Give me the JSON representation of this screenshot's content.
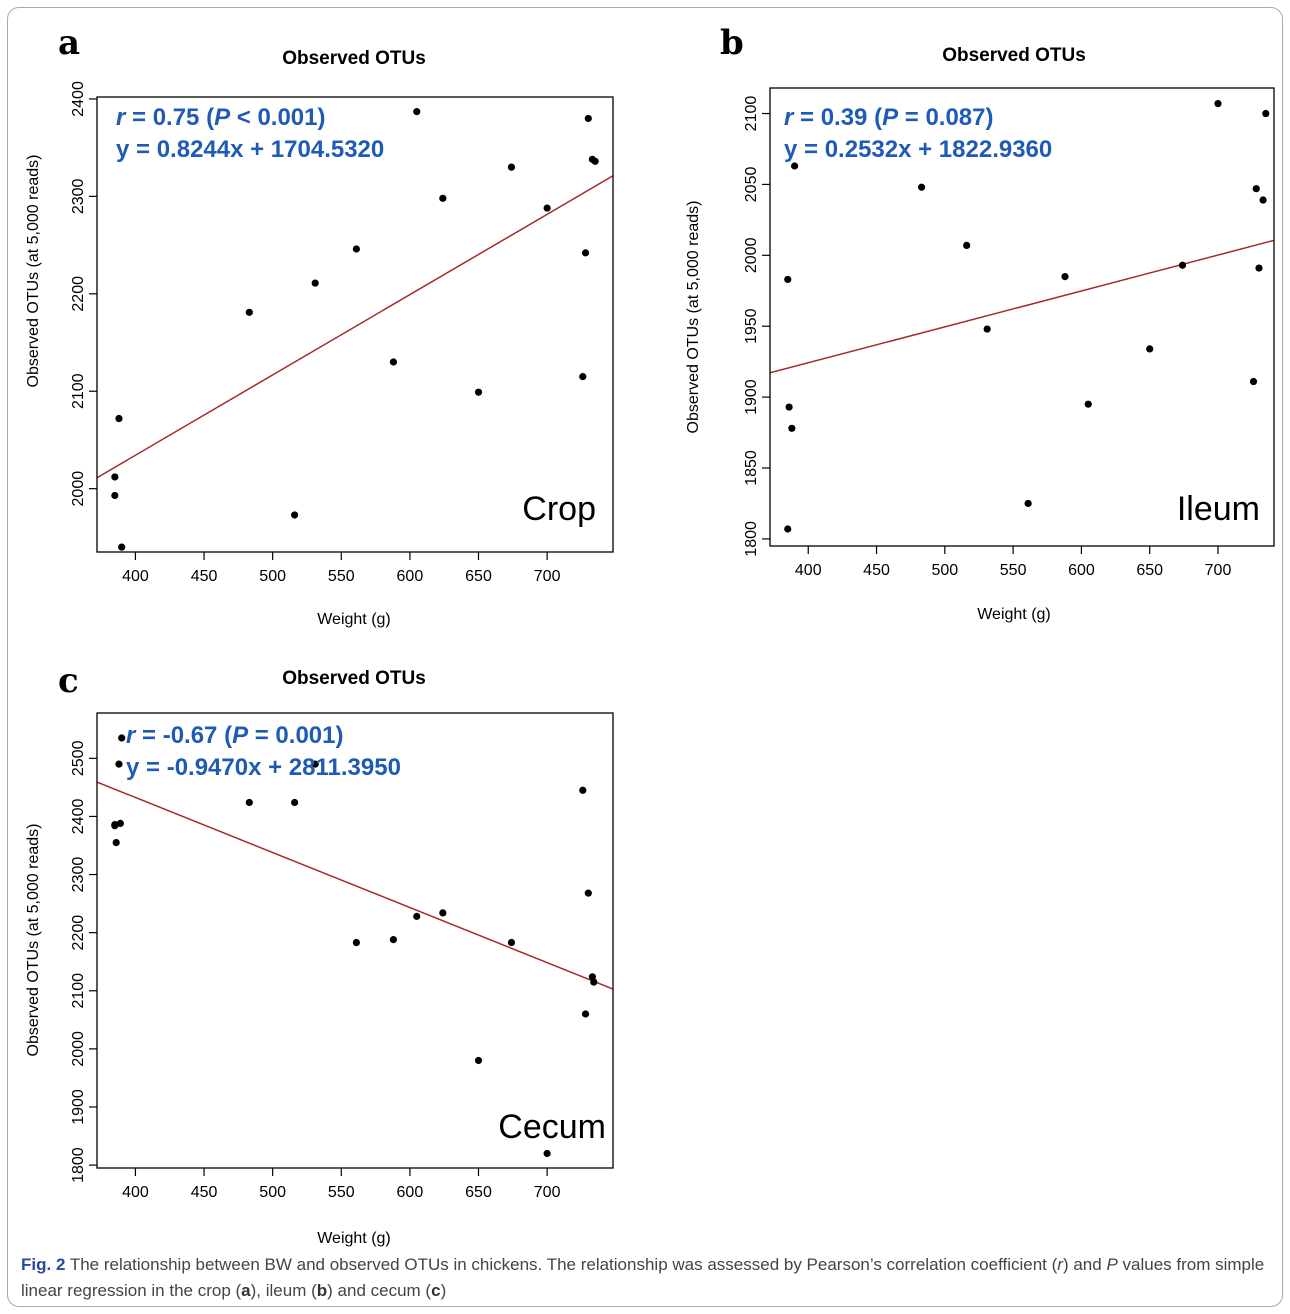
{
  "colors": {
    "stat_text": "#1f5bb5",
    "regression_line": "#a52a2a",
    "points": "#000000",
    "fig_label": "#2b4a9b"
  },
  "chart_data": [
    {
      "type": "scatter",
      "panel": "a",
      "title": "Observed OTUs",
      "xlabel": "Weight (g)",
      "ylabel": "Observed OTUs (at 5,000 reads)",
      "tissue": "Crop",
      "stat_r": "r = 0.75 (P < 0.001)",
      "stat_eq": "y = 0.8244x + 1704.5320",
      "xlim": [
        372,
        748
      ],
      "ylim": [
        1935,
        2402
      ],
      "xticks": [
        400,
        450,
        500,
        550,
        600,
        650,
        700
      ],
      "yticks": [
        2000,
        2100,
        2200,
        2300,
        2400
      ],
      "regression": {
        "slope": 0.8244,
        "intercept": 1704.532
      },
      "x": [
        385,
        385,
        388,
        390,
        483,
        516,
        531,
        561,
        588,
        605,
        624,
        650,
        674,
        700,
        726,
        728,
        730,
        733,
        735
      ],
      "y": [
        2012,
        1993,
        2072,
        1940,
        2181,
        1973,
        2211,
        2246,
        2130,
        2387,
        2298,
        2099,
        2330,
        2288,
        2115,
        2242,
        2380,
        2338,
        2336
      ]
    },
    {
      "type": "scatter",
      "panel": "b",
      "title": "Observed OTUs",
      "xlabel": "Weight (g)",
      "ylabel": "Observed OTUs (at 5,000 reads)",
      "tissue": "Ileum",
      "stat_r": "r = 0.39 (P = 0.087)",
      "stat_eq": "y = 0.2532x + 1822.9360",
      "xlim": [
        372,
        741
      ],
      "ylim": [
        1795,
        2118
      ],
      "xticks": [
        400,
        450,
        500,
        550,
        600,
        650,
        700
      ],
      "yticks": [
        1800,
        1850,
        1900,
        1950,
        2000,
        2050,
        2100
      ],
      "regression": {
        "slope": 0.2532,
        "intercept": 1822.936
      },
      "x": [
        385,
        385,
        386,
        388,
        390,
        483,
        516,
        531,
        561,
        588,
        605,
        650,
        674,
        700,
        726,
        728,
        730,
        733,
        735
      ],
      "y": [
        1983,
        1807,
        1893,
        1878,
        2063,
        2048,
        2007,
        1948,
        1825,
        1985,
        1895,
        1934,
        1993,
        2107,
        1911,
        2047,
        1991,
        2039,
        2100
      ]
    },
    {
      "type": "scatter",
      "panel": "c",
      "title": "Observed OTUs",
      "xlabel": "Weight (g)",
      "ylabel": "Observed OTUs (at 5,000 reads)",
      "tissue": "Cecum",
      "stat_r": "r = -0.67 (P = 0.001)",
      "stat_eq": "y = -0.9470x + 2811.3950",
      "xlim": [
        372,
        748
      ],
      "ylim": [
        1795,
        2578
      ],
      "xticks": [
        400,
        450,
        500,
        550,
        600,
        650,
        700
      ],
      "yticks": [
        1800,
        1900,
        2000,
        2100,
        2200,
        2300,
        2400,
        2500
      ],
      "regression": {
        "slope": -0.947,
        "intercept": 2811.395
      },
      "x": [
        385,
        386,
        385,
        388,
        389,
        390,
        483,
        516,
        531,
        561,
        588,
        605,
        624,
        650,
        674,
        700,
        726,
        728,
        730,
        733,
        734
      ],
      "y": [
        2384,
        2355,
        2386,
        2490,
        2388,
        2535,
        2424,
        2424,
        2490,
        2183,
        2188,
        2228,
        2234,
        1980,
        2183,
        1820,
        2445,
        2060,
        2268,
        2124,
        2115
      ]
    }
  ],
  "caption": {
    "fig": "Fig. 2",
    "s1": " The relationship between BW and observed OTUs in chickens. The relationship was assessed by Pearson’s correlation coefficient (",
    "r": "r",
    "s2": ") and ",
    "p": "P",
    "s3": " values from simple linear regression in the crop (",
    "a": "a",
    "s4": "), ileum (",
    "b": "b",
    "s5": ") and cecum (",
    "c": "c",
    "s6": ")"
  }
}
